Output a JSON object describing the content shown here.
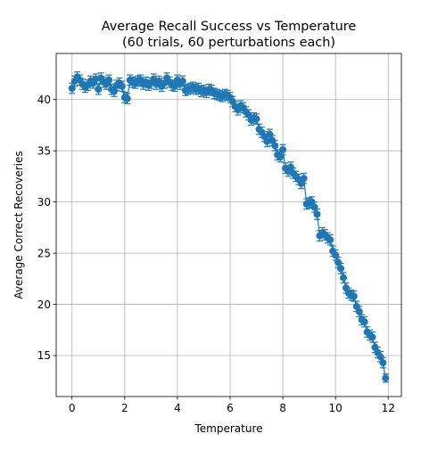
{
  "chart_data": {
    "type": "scatter",
    "title": "Average Recall Success vs Temperature",
    "subtitle": "(60 trials, 60 perturbations each)",
    "xlabel": "Temperature",
    "ylabel": "Average Correct Recoveries",
    "xlim": [
      -0.6,
      12.5
    ],
    "ylim": [
      11.0,
      44.5
    ],
    "xticks": [
      0,
      2,
      4,
      6,
      8,
      10,
      12
    ],
    "yticks": [
      15,
      20,
      25,
      30,
      35,
      40
    ],
    "grid": true,
    "legend": "none",
    "marker_color": "#1f77b4",
    "series": [
      {
        "x": [
          0.0,
          0.1,
          0.2,
          0.3,
          0.4,
          0.5,
          0.6,
          0.7,
          0.8,
          0.9,
          1.0,
          1.1,
          1.2,
          1.3,
          1.4,
          1.5,
          1.6,
          1.7,
          1.8,
          1.9,
          2.0,
          2.1,
          2.2,
          2.3,
          2.4,
          2.5,
          2.6,
          2.7,
          2.8,
          2.9,
          3.0,
          3.1,
          3.2,
          3.3,
          3.4,
          3.5,
          3.6,
          3.7,
          3.8,
          3.9,
          4.0,
          4.1,
          4.2,
          4.3,
          4.4,
          4.5,
          4.6,
          4.7,
          4.8,
          4.9,
          5.0,
          5.1,
          5.2,
          5.3,
          5.4,
          5.5,
          5.6,
          5.7,
          5.8,
          5.9,
          6.0,
          6.1,
          6.2,
          6.3,
          6.4,
          6.5,
          6.6,
          6.7,
          6.8,
          6.9,
          7.0,
          7.1,
          7.2,
          7.3,
          7.4,
          7.5,
          7.6,
          7.7,
          7.8,
          7.9,
          8.0,
          8.1,
          8.2,
          8.3,
          8.4,
          8.5,
          8.6,
          8.7,
          8.8,
          8.9,
          9.0,
          9.1,
          9.2,
          9.3,
          9.4,
          9.5,
          9.6,
          9.7,
          9.8,
          9.9,
          10.0,
          10.1,
          10.2,
          10.3,
          10.4,
          10.5,
          10.6,
          10.7,
          10.8,
          10.9,
          11.0,
          11.1,
          11.2,
          11.3,
          11.4,
          11.5,
          11.6,
          11.7,
          11.8,
          11.9
        ],
        "y": [
          41.1,
          41.8,
          42.2,
          41.9,
          41.5,
          41.2,
          41.4,
          41.8,
          41.6,
          42.0,
          41.0,
          42.1,
          41.7,
          41.5,
          41.9,
          41.0,
          40.8,
          41.4,
          41.6,
          41.3,
          40.2,
          40.1,
          41.9,
          41.7,
          41.6,
          41.8,
          41.9,
          41.5,
          41.7,
          41.4,
          41.6,
          42.0,
          41.5,
          41.8,
          41.3,
          41.6,
          42.1,
          41.7,
          41.4,
          41.3,
          41.9,
          41.5,
          41.8,
          40.9,
          41.0,
          41.1,
          41.2,
          41.0,
          41.1,
          40.8,
          40.9,
          40.7,
          41.0,
          40.9,
          40.6,
          40.5,
          40.4,
          40.3,
          40.5,
          40.4,
          40.2,
          39.8,
          39.3,
          39.0,
          39.4,
          39.2,
          38.8,
          38.5,
          38.0,
          38.2,
          38.1,
          37.1,
          36.8,
          36.4,
          35.9,
          36.6,
          36.0,
          35.5,
          34.6,
          34.4,
          35.1,
          33.3,
          33.0,
          33.4,
          32.8,
          32.5,
          32.2,
          31.8,
          32.3,
          29.8,
          29.9,
          30.0,
          29.5,
          28.8,
          26.7,
          27.0,
          26.8,
          26.5,
          26.3,
          25.2,
          24.8,
          24.1,
          23.5,
          22.6,
          21.6,
          21.1,
          20.9,
          20.8,
          19.8,
          19.3,
          18.5,
          18.3,
          17.3,
          17.0,
          16.8,
          15.8,
          15.3,
          14.9,
          14.3,
          12.8
        ],
        "yerr": [
          0.5,
          0.5,
          0.5,
          0.5,
          0.5,
          0.5,
          0.5,
          0.5,
          0.5,
          0.5,
          0.5,
          0.5,
          0.5,
          0.5,
          0.5,
          0.5,
          0.5,
          0.5,
          0.5,
          0.5,
          0.5,
          0.5,
          0.5,
          0.5,
          0.5,
          0.5,
          0.5,
          0.5,
          0.5,
          0.5,
          0.5,
          0.5,
          0.5,
          0.5,
          0.5,
          0.5,
          0.5,
          0.5,
          0.5,
          0.5,
          0.5,
          0.5,
          0.5,
          0.5,
          0.5,
          0.5,
          0.5,
          0.5,
          0.5,
          0.5,
          0.5,
          0.5,
          0.5,
          0.5,
          0.5,
          0.5,
          0.5,
          0.5,
          0.5,
          0.5,
          0.5,
          0.5,
          0.5,
          0.5,
          0.5,
          0.5,
          0.5,
          0.5,
          0.5,
          0.5,
          0.5,
          0.5,
          0.5,
          0.5,
          0.5,
          0.5,
          0.5,
          0.5,
          0.5,
          0.5,
          0.5,
          0.5,
          0.5,
          0.5,
          0.5,
          0.5,
          0.5,
          0.5,
          0.5,
          0.5,
          0.5,
          0.5,
          0.5,
          0.5,
          0.5,
          0.5,
          0.5,
          0.5,
          0.5,
          0.5,
          0.5,
          0.5,
          0.5,
          0.5,
          0.5,
          0.5,
          0.5,
          0.5,
          0.5,
          0.5,
          0.5,
          0.5,
          0.5,
          0.5,
          0.5,
          0.5,
          0.5,
          0.5,
          0.5,
          0.4
        ]
      }
    ]
  }
}
